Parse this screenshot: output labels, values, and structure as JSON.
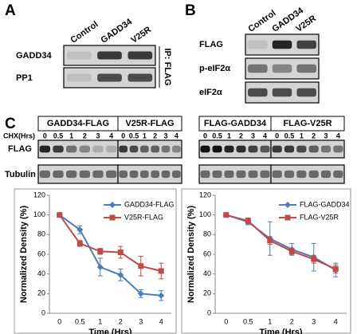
{
  "panel_labels": [
    "A",
    "B",
    "C"
  ],
  "panel_a": {
    "columns": [
      "Control",
      "GADD34",
      "V25R"
    ],
    "rows": [
      "GADD34",
      "PP1"
    ],
    "side_label": "IP: FLAG"
  },
  "panel_b": {
    "columns": [
      "Control",
      "GADD34",
      "V25R"
    ],
    "rows": [
      "FLAG",
      "p-eIF2α",
      "eIF2α"
    ]
  },
  "panel_c": {
    "groups": [
      "GADD34-FLAG",
      "V25R-FLAG",
      "FLAG-GADD34",
      "FLAG-V25R"
    ],
    "time_label": "CHX(Hrs)",
    "times": [
      "0",
      "0.5",
      "1",
      "2",
      "3",
      "4"
    ],
    "rows": [
      "FLAG",
      "Tubulin"
    ]
  },
  "chart_data": [
    {
      "type": "line",
      "categories": [
        "0",
        "0.5",
        "1",
        "2",
        "3",
        "4"
      ],
      "xlabel": "Time (Hrs)",
      "ylabel": "Normalized Density (%)",
      "ylim": [
        0,
        120
      ],
      "yticks": [
        0,
        20,
        40,
        60,
        80,
        100,
        120
      ],
      "legend": "upper right",
      "series": [
        {
          "name": "GADD34-FLAG",
          "color": "#4a7ebb",
          "marker": "diamond",
          "values": [
            100,
            85,
            47,
            39,
            20,
            18
          ],
          "errors": [
            0,
            4,
            9,
            6,
            4,
            5
          ]
        },
        {
          "name": "V25R-FLAG",
          "color": "#be4b48",
          "marker": "square",
          "values": [
            100,
            71,
            63,
            62,
            48,
            43
          ],
          "errors": [
            0,
            3,
            3,
            6,
            10,
            8
          ]
        }
      ]
    },
    {
      "type": "line",
      "categories": [
        "0",
        "0.5",
        "1",
        "2",
        "3",
        "4"
      ],
      "xlabel": "Time (Hrs)",
      "ylabel": "Normalized Density (%)",
      "ylim": [
        0,
        120
      ],
      "yticks": [
        0,
        20,
        40,
        60,
        80,
        100,
        120
      ],
      "legend": "upper right",
      "series": [
        {
          "name": "FLAG-GADD34",
          "color": "#4a7ebb",
          "marker": "diamond",
          "values": [
            100,
            93,
            76,
            65,
            57,
            44
          ],
          "errors": [
            0,
            3,
            17,
            6,
            14,
            7
          ]
        },
        {
          "name": "FLAG-V25R",
          "color": "#be4b48",
          "marker": "square",
          "values": [
            100,
            94,
            74,
            63,
            55,
            45
          ],
          "errors": [
            0,
            3,
            4,
            3,
            4,
            4
          ]
        }
      ]
    }
  ]
}
